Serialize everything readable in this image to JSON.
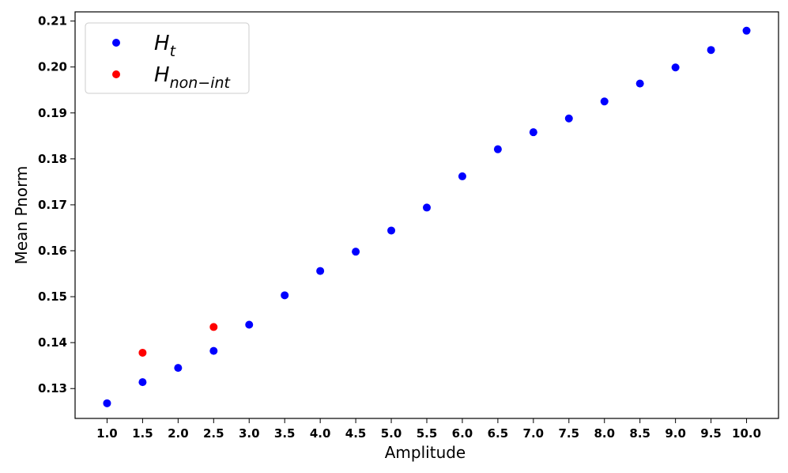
{
  "chart_data": {
    "type": "scatter",
    "xlabel": "Amplitude",
    "ylabel": "Mean Pnorm",
    "xlim": [
      0.55,
      10.45
    ],
    "ylim": [
      0.1235,
      0.212
    ],
    "x_ticks": [
      "1.0",
      "1.5",
      "2.0",
      "2.5",
      "3.0",
      "3.5",
      "4.0",
      "4.5",
      "5.0",
      "5.5",
      "6.0",
      "6.5",
      "7.0",
      "7.5",
      "8.0",
      "8.5",
      "9.0",
      "9.5",
      "10.0"
    ],
    "y_ticks": [
      "0.13",
      "0.14",
      "0.15",
      "0.16",
      "0.17",
      "0.18",
      "0.19",
      "0.20",
      "0.21"
    ],
    "grid": false,
    "legend_position": "top-left",
    "series": [
      {
        "name": "H",
        "name_subscript": "t",
        "color": "#0000ff",
        "x": [
          1.0,
          1.5,
          2.0,
          2.5,
          3.0,
          3.5,
          4.0,
          4.5,
          5.0,
          5.5,
          6.0,
          6.5,
          7.0,
          7.5,
          8.0,
          8.5,
          9.0,
          9.5,
          10.0
        ],
        "y": [
          0.1268,
          0.1314,
          0.1345,
          0.1382,
          0.1439,
          0.1503,
          0.1556,
          0.1598,
          0.1644,
          0.1694,
          0.1762,
          0.1821,
          0.1858,
          0.1888,
          0.1925,
          0.1964,
          0.1999,
          0.2037,
          0.2079
        ]
      },
      {
        "name": "H",
        "name_subscript": "non−int",
        "color": "#ff0000",
        "x": [
          1.5,
          2.5
        ],
        "y": [
          0.1378,
          0.1434
        ]
      }
    ]
  }
}
